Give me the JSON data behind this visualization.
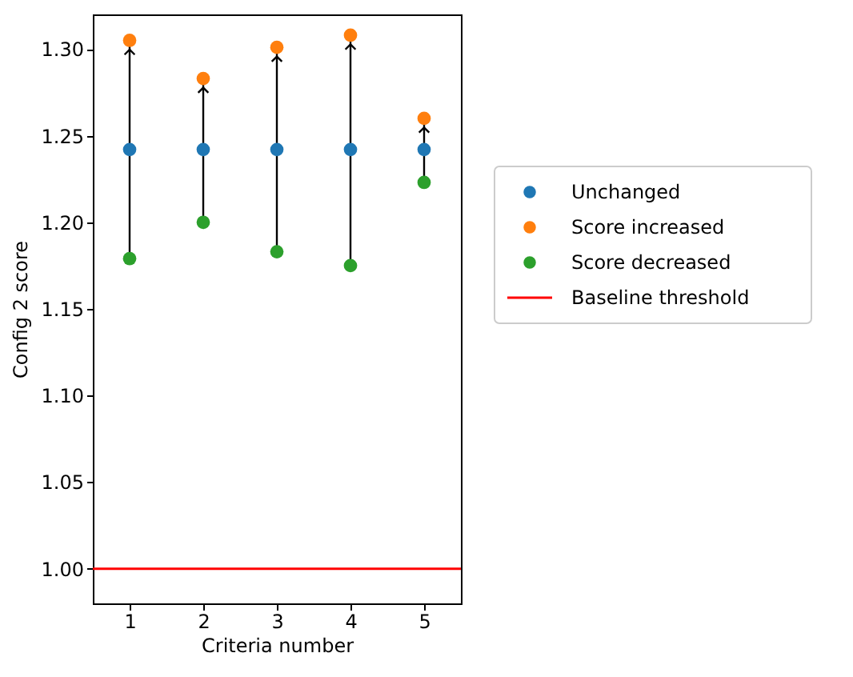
{
  "chart_data": {
    "type": "scatter",
    "xlabel": "Criteria number",
    "ylabel": "Config 2 score",
    "x": [
      1,
      2,
      3,
      4,
      5
    ],
    "series": [
      {
        "name": "Unchanged",
        "color": "#1f77b4",
        "values": [
          1.242,
          1.242,
          1.242,
          1.242,
          1.242
        ]
      },
      {
        "name": "Score increased",
        "color": "#ff7f0e",
        "values": [
          1.305,
          1.283,
          1.301,
          1.308,
          1.26
        ]
      },
      {
        "name": "Score decreased",
        "color": "#2ca02c",
        "values": [
          1.179,
          1.2,
          1.183,
          1.175,
          1.223
        ]
      }
    ],
    "ref_lines": [
      {
        "axis": "y",
        "value": 1.0,
        "label": "Baseline threshold",
        "color": "#ff0000",
        "line_style": "solid"
      }
    ],
    "xlim": [
      0.5,
      5.5
    ],
    "xticks": [
      1,
      2,
      3,
      4,
      5
    ],
    "ylim": [
      0.98,
      1.32
    ],
    "yticks": [
      {
        "value": 1.0,
        "label": "1.00"
      },
      1.05,
      {
        "value": 1.1,
        "label": "1.10"
      },
      1.15,
      {
        "value": 1.2,
        "label": "1.20"
      },
      1.25,
      {
        "value": 1.3,
        "label": "1.30"
      }
    ],
    "marker": "circle",
    "grid": false,
    "legend": "right"
  }
}
